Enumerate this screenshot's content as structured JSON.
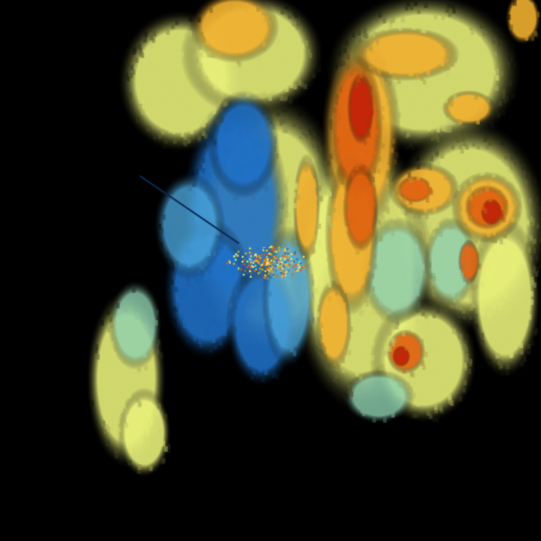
{
  "image": {
    "kind": "weather-radar-scan",
    "background_color": "#000000",
    "palette": {
      "low": "#1f6fc4",
      "low_mid": "#4aa3d8",
      "mid": "#8fd0b0",
      "mid_high": "#e8f07a",
      "high": "#f0b030",
      "very_high": "#e06010",
      "extreme": "#c02008"
    }
  }
}
